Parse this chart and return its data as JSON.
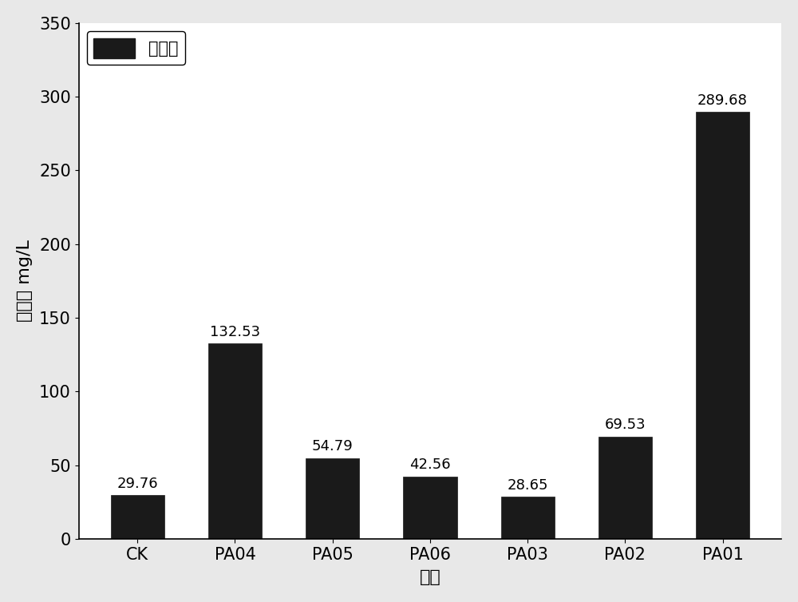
{
  "categories": [
    "CK",
    "PA04",
    "PA05",
    "PA06",
    "PA03",
    "PA02",
    "PA01"
  ],
  "values": [
    29.76,
    132.53,
    54.79,
    42.56,
    28.65,
    69.53,
    289.68
  ],
  "bar_color": "#1a1a1a",
  "bar_edge_color": "#1a1a1a",
  "ylabel": "解磷量 mg/L",
  "ylabel_cn": "解磷量",
  "ylabel_en": "mg/L",
  "xlabel": "菌株",
  "ylim": [
    0,
    350
  ],
  "yticks": [
    0,
    50,
    100,
    150,
    200,
    250,
    300,
    350
  ],
  "legend_label": "解磷量",
  "background_color": "#e8e8e8",
  "plot_bg_color": "#ffffff",
  "value_labels": [
    "29.76",
    "132.53",
    "54.79",
    "42.56",
    "28.65",
    "69.53",
    "289.68"
  ],
  "bar_width": 0.55,
  "label_fontsize": 16,
  "tick_fontsize": 15,
  "legend_fontsize": 15,
  "value_fontsize": 13
}
